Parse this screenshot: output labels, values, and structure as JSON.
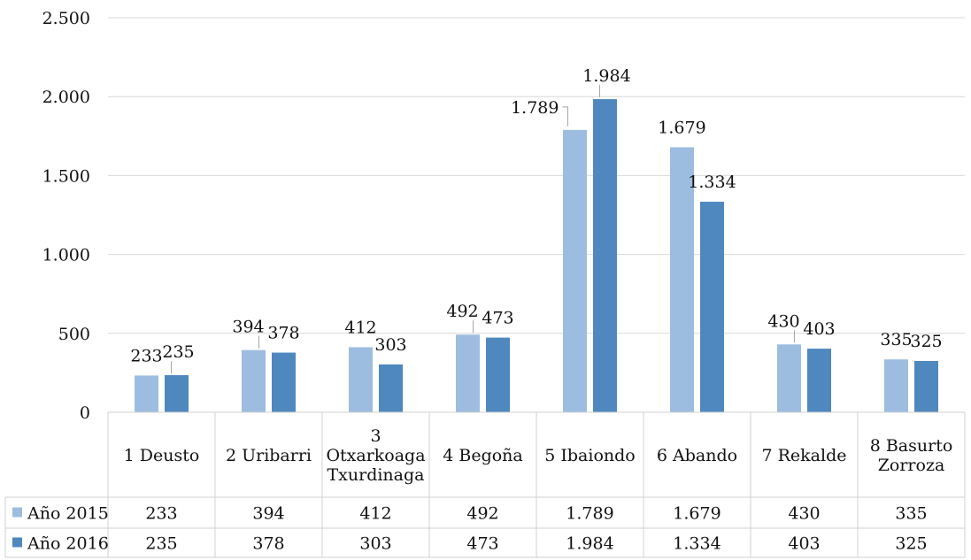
{
  "chart_data": {
    "type": "bar",
    "categories": [
      [
        "1 Deusto"
      ],
      [
        "2 Uribarri"
      ],
      [
        "3",
        "Otxarkoaga",
        "Txurdinaga"
      ],
      [
        "4 Begoña"
      ],
      [
        "5 Ibaiondo"
      ],
      [
        "6 Abando"
      ],
      [
        "7 Rekalde"
      ],
      [
        "8 Basurto",
        "Zorroza"
      ]
    ],
    "series": [
      {
        "name": "Año 2015",
        "color": "#9dbde0",
        "values": [
          233,
          394,
          412,
          492,
          1789,
          1679,
          430,
          335
        ],
        "labels": [
          "233",
          "394",
          "412",
          "492",
          "1.789",
          "1.679",
          "430",
          "335"
        ]
      },
      {
        "name": "Año 2016",
        "color": "#4f88bf",
        "values": [
          235,
          378,
          303,
          473,
          1984,
          1334,
          403,
          325
        ],
        "labels": [
          "235",
          "378",
          "303",
          "473",
          "1.984",
          "1.334",
          "403",
          "325"
        ]
      }
    ],
    "ylim": [
      0,
      2500
    ],
    "yticks": [
      0,
      500,
      1000,
      1500,
      2000,
      2500
    ],
    "ytick_labels": [
      "0",
      "500",
      "1.000",
      "1.500",
      "2.000",
      "2.500"
    ],
    "grid": true,
    "legend": "data-table",
    "title": "",
    "xlabel": "",
    "ylabel": ""
  }
}
